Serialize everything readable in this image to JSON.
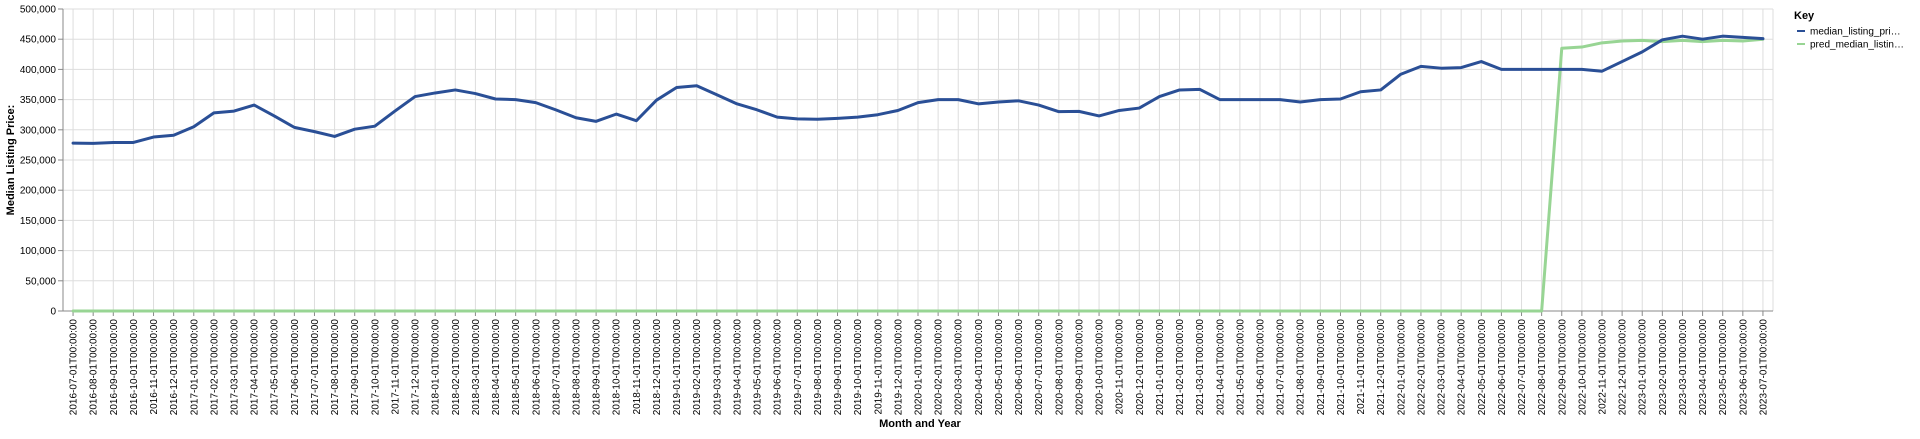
{
  "chart_data": {
    "type": "line",
    "title": "",
    "xlabel": "Month and Year",
    "ylabel": "Median Listing Price:",
    "ylim": [
      0,
      500000
    ],
    "yticks": [
      "0",
      "50,000",
      "100,000",
      "150,000",
      "200,000",
      "250,000",
      "300,000",
      "350,000",
      "400,000",
      "450,000",
      "500,000"
    ],
    "grid": true,
    "legend": {
      "title": "Key",
      "position": "right",
      "entries": [
        "median_listing_pri…",
        "pred_median_listin…"
      ]
    },
    "x": [
      "2016-07-01T00:00:00",
      "2016-08-01T00:00:00",
      "2016-09-01T00:00:00",
      "2016-10-01T00:00:00",
      "2016-11-01T00:00:00",
      "2016-12-01T00:00:00",
      "2017-01-01T00:00:00",
      "2017-02-01T00:00:00",
      "2017-03-01T00:00:00",
      "2017-04-01T00:00:00",
      "2017-05-01T00:00:00",
      "2017-06-01T00:00:00",
      "2017-07-01T00:00:00",
      "2017-08-01T00:00:00",
      "2017-09-01T00:00:00",
      "2017-10-01T00:00:00",
      "2017-11-01T00:00:00",
      "2017-12-01T00:00:00",
      "2018-01-01T00:00:00",
      "2018-02-01T00:00:00",
      "2018-03-01T00:00:00",
      "2018-04-01T00:00:00",
      "2018-05-01T00:00:00",
      "2018-06-01T00:00:00",
      "2018-07-01T00:00:00",
      "2018-08-01T00:00:00",
      "2018-09-01T00:00:00",
      "2018-10-01T00:00:00",
      "2018-11-01T00:00:00",
      "2018-12-01T00:00:00",
      "2019-01-01T00:00:00",
      "2019-02-01T00:00:00",
      "2019-03-01T00:00:00",
      "2019-04-01T00:00:00",
      "2019-05-01T00:00:00",
      "2019-06-01T00:00:00",
      "2019-07-01T00:00:00",
      "2019-08-01T00:00:00",
      "2019-09-01T00:00:00",
      "2019-10-01T00:00:00",
      "2019-11-01T00:00:00",
      "2019-12-01T00:00:00",
      "2020-01-01T00:00:00",
      "2020-02-01T00:00:00",
      "2020-03-01T00:00:00",
      "2020-04-01T00:00:00",
      "2020-05-01T00:00:00",
      "2020-06-01T00:00:00",
      "2020-07-01T00:00:00",
      "2020-08-01T00:00:00",
      "2020-09-01T00:00:00",
      "2020-10-01T00:00:00",
      "2020-11-01T00:00:00",
      "2020-12-01T00:00:00",
      "2021-01-01T00:00:00",
      "2021-02-01T00:00:00",
      "2021-03-01T00:00:00",
      "2021-04-01T00:00:00",
      "2021-05-01T00:00:00",
      "2021-06-01T00:00:00",
      "2021-07-01T00:00:00",
      "2021-08-01T00:00:00",
      "2021-09-01T00:00:00",
      "2021-10-01T00:00:00",
      "2021-11-01T00:00:00",
      "2021-12-01T00:00:00",
      "2022-01-01T00:00:00",
      "2022-02-01T00:00:00",
      "2022-03-01T00:00:00",
      "2022-04-01T00:00:00",
      "2022-05-01T00:00:00",
      "2022-06-01T00:00:00",
      "2022-07-01T00:00:00",
      "2022-08-01T00:00:00",
      "2022-09-01T00:00:00",
      "2022-10-01T00:00:00",
      "2022-11-01T00:00:00",
      "2022-12-01T00:00:00",
      "2023-01-01T00:00:00",
      "2023-02-01T00:00:00",
      "2023-03-01T00:00:00",
      "2023-04-01T00:00:00",
      "2023-05-01T00:00:00",
      "2023-06-01T00:00:00",
      "2023-07-01T00:00:00"
    ],
    "series": [
      {
        "name": "median_listing_pri…",
        "color": "#2a4f96",
        "values": [
          278000,
          277500,
          279000,
          279000,
          288000,
          291000,
          305000,
          328000,
          331000,
          341000,
          323000,
          304000,
          297000,
          289000,
          301000,
          306000,
          331000,
          355000,
          361000,
          366000,
          360000,
          351000,
          350000,
          345000,
          333000,
          320000,
          314000,
          326000,
          315000,
          349000,
          370000,
          373000,
          358000,
          343000,
          333000,
          321000,
          318000,
          317500,
          319000,
          321000,
          325000,
          332000,
          345000,
          350000,
          350000,
          343000,
          346000,
          348000,
          341000,
          330000,
          330500,
          323000,
          332000,
          336000,
          355000,
          366000,
          367000,
          350000,
          350000,
          350000,
          350000,
          346000,
          350000,
          351000,
          363000,
          366000,
          392000,
          405000,
          402000,
          403000,
          413000,
          400000,
          400000,
          400000,
          400000,
          400000,
          397000,
          413000,
          429000,
          449000,
          455000,
          450000,
          455000,
          453000,
          451000
        ]
      },
      {
        "name": "pred_median_listin…",
        "color": "#98d594",
        "values": [
          0,
          0,
          0,
          0,
          0,
          0,
          0,
          0,
          0,
          0,
          0,
          0,
          0,
          0,
          0,
          0,
          0,
          0,
          0,
          0,
          0,
          0,
          0,
          0,
          0,
          0,
          0,
          0,
          0,
          0,
          0,
          0,
          0,
          0,
          0,
          0,
          0,
          0,
          0,
          0,
          0,
          0,
          0,
          0,
          0,
          0,
          0,
          0,
          0,
          0,
          0,
          0,
          0,
          0,
          0,
          0,
          0,
          0,
          0,
          0,
          0,
          0,
          0,
          0,
          0,
          0,
          0,
          0,
          0,
          0,
          0,
          0,
          0,
          0,
          435000,
          437000,
          444000,
          447000,
          448000,
          446000,
          448000,
          446000,
          448000,
          447000,
          450000
        ]
      }
    ]
  }
}
